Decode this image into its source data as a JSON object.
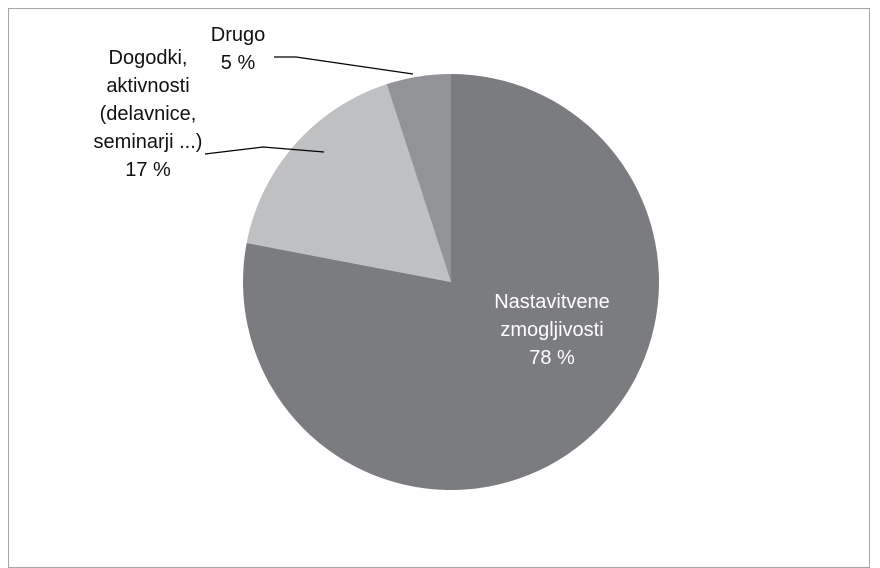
{
  "chart_data": {
    "type": "pie",
    "title": "",
    "slices": [
      {
        "label_lines": [
          "Nastavitvene",
          "zmogljivosti"
        ],
        "pct_label": "78 %",
        "value": 78,
        "color": "#7b7c7f",
        "text_color": "#ffffff"
      },
      {
        "label_lines": [
          "Dogodki,",
          "aktivnosti",
          "(delavnice,",
          "seminarji ...)"
        ],
        "pct_label": "17 %",
        "value": 17,
        "color": "#bfc0c2",
        "text_color": "#111111"
      },
      {
        "label_lines": [
          "Drugo"
        ],
        "pct_label": "5 %",
        "value": 5,
        "color": "#929396",
        "text_color": "#111111"
      }
    ],
    "start": "top",
    "direction": "clockwise",
    "legend": "none"
  }
}
